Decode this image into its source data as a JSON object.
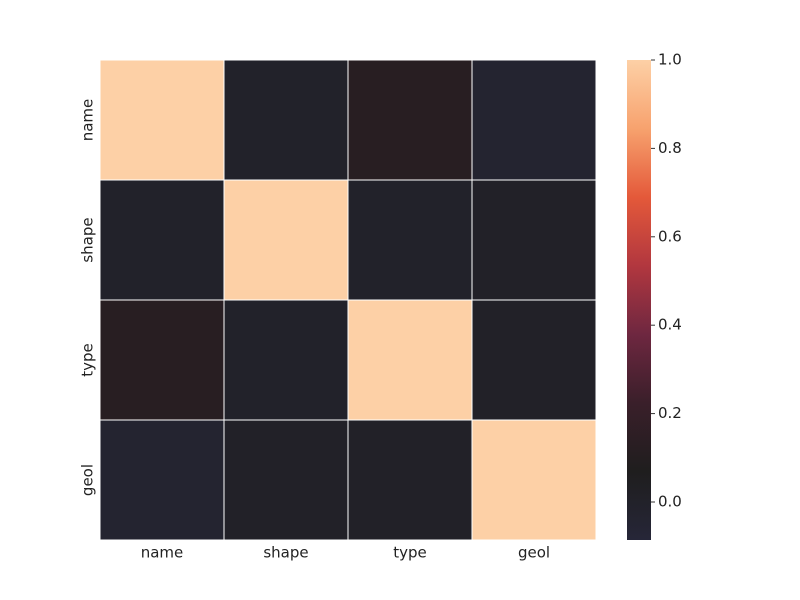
{
  "chart_data": {
    "type": "heatmap",
    "x_categories": [
      "name",
      "shape",
      "type",
      "geol"
    ],
    "y_categories": [
      "name",
      "shape",
      "type",
      "geol"
    ],
    "z": [
      [
        1.0,
        0.0,
        0.12,
        -0.04
      ],
      [
        0.0,
        1.0,
        0.0,
        0.01
      ],
      [
        0.12,
        0.0,
        1.0,
        0.01
      ],
      [
        -0.04,
        0.01,
        0.01,
        1.0
      ]
    ],
    "clim": [
      -0.086,
      1.0
    ],
    "colorbar_ticks": [
      {
        "value": 0,
        "label": "0.0"
      },
      0.2,
      0.4,
      0.6,
      0.8,
      {
        "value": 1,
        "label": "1.0"
      }
    ],
    "colormap": [
      "#262638",
      "#1f1e1e",
      "#3a1f2a",
      "#6e2740",
      "#b2373f",
      "#e4593a",
      "#f7a26e",
      "#fdd0a6"
    ],
    "cell_border_color": "#ffffff"
  }
}
